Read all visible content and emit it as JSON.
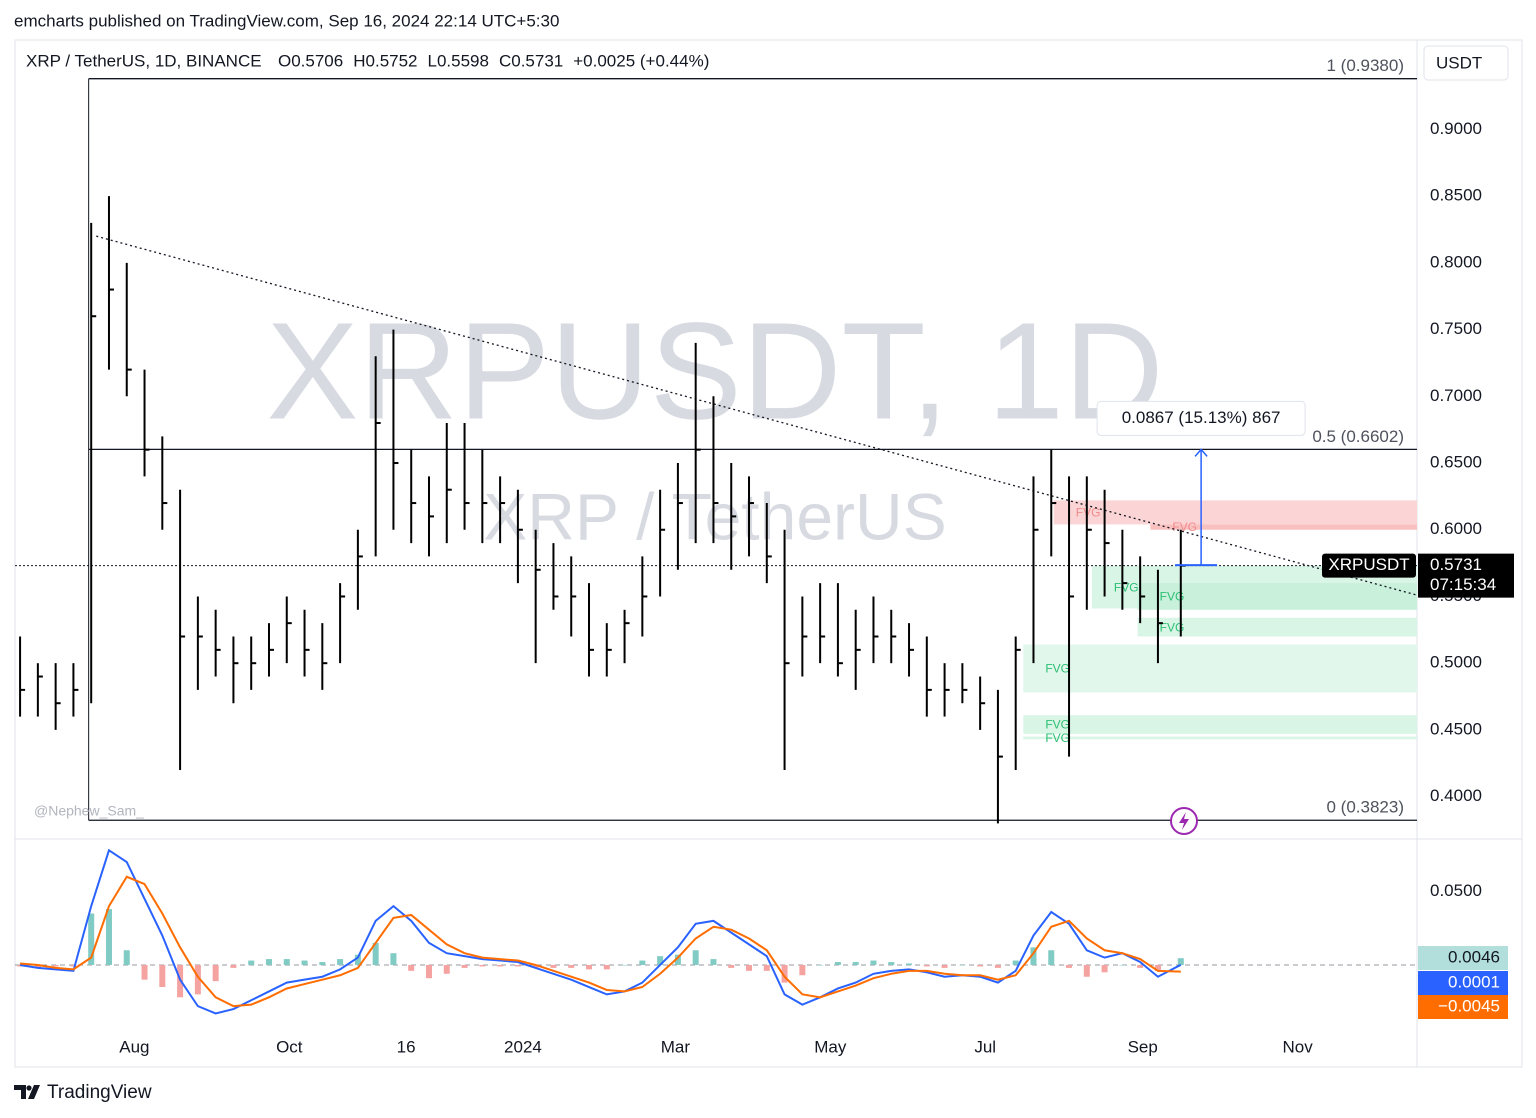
{
  "chart_data": {
    "type": "ohlc",
    "publisher": "emcharts published on TradingView.com, Sep 16, 2024 22:14 UTC+5:30",
    "title": "XRP / TetherUS, 1D, BINANCE",
    "ohlc_labels": [
      "O0.5706",
      "H0.5752",
      "L0.5598",
      "C0.5731",
      "+0.0025 (+0.44%)"
    ],
    "currency": "USDT",
    "watermark": "XRPUSDT, 1D",
    "watermark_sub": "XRP / TetherUS",
    "author": "@Nephew_Sam_",
    "brand": "TradingView",
    "color": "#000000",
    "grid": false,
    "xlim": [
      -47,
      505
    ],
    "xticks": [
      {
        "value": 0,
        "label": "Aug"
      },
      {
        "value": 61,
        "label": "Oct"
      },
      {
        "value": 107,
        "label": "16"
      },
      {
        "value": 153,
        "label": "2024"
      },
      {
        "value": 213,
        "label": "Mar"
      },
      {
        "value": 274,
        "label": "May"
      },
      {
        "value": 335,
        "label": "Jul"
      },
      {
        "value": 397,
        "label": "Sep"
      },
      {
        "value": 458,
        "label": "Nov"
      }
    ],
    "ylim": [
      0.369,
      0.967
    ],
    "yticks": [
      {
        "value": 0.4,
        "label": "0.4000"
      },
      {
        "value": 0.45,
        "label": "0.4500"
      },
      {
        "value": 0.5,
        "label": "0.5000"
      },
      {
        "value": 0.55,
        "label": "0.5500"
      },
      {
        "value": 0.6,
        "label": "0.6000"
      },
      {
        "value": 0.65,
        "label": "0.6500"
      },
      {
        "value": 0.7,
        "label": "0.7000"
      },
      {
        "value": 0.75,
        "label": "0.7500"
      },
      {
        "value": 0.8,
        "label": "0.8000"
      },
      {
        "value": 0.85,
        "label": "0.8500"
      },
      {
        "value": 0.9,
        "label": "0.9000"
      }
    ],
    "x": [
      -45,
      -38,
      -31,
      -24,
      -17,
      -10,
      -3,
      4,
      11,
      18,
      25,
      32,
      39,
      46,
      53,
      60,
      67,
      74,
      81,
      88,
      95,
      102,
      109,
      116,
      123,
      130,
      137,
      144,
      151,
      158,
      165,
      172,
      179,
      186,
      193,
      200,
      207,
      214,
      221,
      228,
      235,
      242,
      249,
      256,
      263,
      270,
      277,
      284,
      291,
      298,
      305,
      312,
      319,
      326,
      333,
      340,
      347,
      354,
      361,
      368,
      375,
      382,
      389,
      396,
      403,
      412
    ],
    "high": [
      0.52,
      0.5,
      0.5,
      0.5,
      0.83,
      0.85,
      0.8,
      0.72,
      0.67,
      0.63,
      0.55,
      0.54,
      0.52,
      0.52,
      0.53,
      0.55,
      0.54,
      0.53,
      0.56,
      0.6,
      0.73,
      0.75,
      0.66,
      0.64,
      0.68,
      0.68,
      0.66,
      0.64,
      0.63,
      0.6,
      0.59,
      0.58,
      0.56,
      0.53,
      0.54,
      0.58,
      0.63,
      0.65,
      0.74,
      0.7,
      0.65,
      0.64,
      0.62,
      0.6,
      0.55,
      0.56,
      0.56,
      0.54,
      0.55,
      0.54,
      0.53,
      0.52,
      0.5,
      0.5,
      0.49,
      0.48,
      0.52,
      0.64,
      0.66,
      0.64,
      0.64,
      0.63,
      0.6,
      0.58,
      0.57,
      0.6
    ],
    "low": [
      0.46,
      0.46,
      0.45,
      0.46,
      0.47,
      0.72,
      0.7,
      0.64,
      0.6,
      0.42,
      0.48,
      0.49,
      0.47,
      0.48,
      0.49,
      0.5,
      0.49,
      0.48,
      0.5,
      0.54,
      0.58,
      0.6,
      0.59,
      0.58,
      0.59,
      0.6,
      0.59,
      0.59,
      0.56,
      0.5,
      0.54,
      0.52,
      0.49,
      0.49,
      0.5,
      0.52,
      0.55,
      0.57,
      0.59,
      0.59,
      0.57,
      0.58,
      0.56,
      0.42,
      0.49,
      0.5,
      0.49,
      0.48,
      0.5,
      0.5,
      0.49,
      0.46,
      0.46,
      0.47,
      0.45,
      0.38,
      0.42,
      0.5,
      0.58,
      0.43,
      0.54,
      0.55,
      0.54,
      0.53,
      0.5,
      0.52
    ],
    "close": [
      0.48,
      0.49,
      0.47,
      0.48,
      0.76,
      0.78,
      0.72,
      0.66,
      0.62,
      0.52,
      0.52,
      0.51,
      0.5,
      0.5,
      0.51,
      0.53,
      0.51,
      0.5,
      0.55,
      0.58,
      0.68,
      0.65,
      0.62,
      0.61,
      0.63,
      0.62,
      0.62,
      0.62,
      0.6,
      0.57,
      0.55,
      0.55,
      0.51,
      0.51,
      0.53,
      0.55,
      0.6,
      0.62,
      0.66,
      0.62,
      0.61,
      0.62,
      0.58,
      0.5,
      0.52,
      0.52,
      0.5,
      0.51,
      0.52,
      0.52,
      0.51,
      0.48,
      0.48,
      0.48,
      0.47,
      0.43,
      0.51,
      0.6,
      0.62,
      0.55,
      0.6,
      0.59,
      0.56,
      0.55,
      0.53,
      0.5731
    ],
    "fib_start": -18,
    "fib_levels": [
      {
        "value": 0.938,
        "label": "1 (0.9380)"
      },
      {
        "value": 0.6602,
        "label": "0.5 (0.6602)"
      },
      {
        "value": 0.3823,
        "label": "0 (0.3823)"
      }
    ],
    "trendline": {
      "x": [
        -15,
        505
      ],
      "y": [
        0.82,
        0.551
      ]
    },
    "last_price": {
      "symbol": "XRPUSDT",
      "value": 0.5731,
      "countdown": "07:15:34"
    },
    "measure": {
      "label": "0.0867 (15.13%) 867",
      "x": 420,
      "from": 0.5735,
      "to": 0.6602,
      "color": "#2962ff"
    },
    "fvg": [
      {
        "label": "FVG",
        "start": 362,
        "top": 0.622,
        "bottom": 0.604,
        "color": "#fbd5d5",
        "label_color": "#f28b8b"
      },
      {
        "label": "FVG",
        "start": 400,
        "top": 0.604,
        "bottom": 0.6,
        "color": "#f9c0c0",
        "label_color": "#f28b8b"
      },
      {
        "label": "FVG",
        "start": 377,
        "top": 0.573,
        "bottom": 0.541,
        "color": "#d9f5e6",
        "label_color": "#2bbf73"
      },
      {
        "label": "FVG",
        "start": 395,
        "top": 0.56,
        "bottom": 0.54,
        "color": "#c8f0db",
        "label_color": "#2bbf73"
      },
      {
        "label": "FVG",
        "start": 395,
        "top": 0.534,
        "bottom": 0.52,
        "color": "#d9f5e6",
        "label_color": "#2bbf73"
      },
      {
        "label": "FVG",
        "start": 350,
        "top": 0.514,
        "bottom": 0.478,
        "color": "#e1f7eb",
        "label_color": "#2bbf73"
      },
      {
        "label": "FVG",
        "start": 350,
        "top": 0.461,
        "bottom": 0.447,
        "color": "#d9f5e6",
        "label_color": "#2bbf73"
      },
      {
        "label": "FVG",
        "start": 350,
        "top": 0.445,
        "bottom": 0.443,
        "color": "#d9f5e6",
        "label_color": "#2bbf73"
      }
    ],
    "macd": {
      "ylim": [
        -0.049,
        0.085
      ],
      "yticks": [
        {
          "value": 0.05,
          "label": "0.0500"
        }
      ],
      "histogram": {
        "up_color": "#80cbc4",
        "down_color": "#f4a3a1",
        "label_bg": "#b2dfdb",
        "last_label": "0.0046",
        "values": [
          -0.001,
          -0.002,
          -0.001,
          -0.001,
          0.035,
          0.038,
          0.01,
          -0.01,
          -0.015,
          -0.022,
          -0.02,
          -0.011,
          -0.002,
          0.003,
          0.004,
          0.004,
          0.003,
          0.002,
          0.004,
          0.007,
          0.015,
          0.008,
          -0.004,
          -0.009,
          -0.006,
          -0.002,
          -0.001,
          -0.001,
          -0.001,
          -0.002,
          -0.002,
          -0.002,
          -0.003,
          -0.003,
          0.0,
          0.003,
          0.006,
          0.007,
          0.01,
          0.004,
          -0.002,
          -0.004,
          -0.004,
          -0.012,
          -0.007,
          0.0,
          0.002,
          0.002,
          0.003,
          0.002,
          0.001,
          -0.001,
          -0.002,
          0.0,
          -0.001,
          -0.002,
          0.003,
          0.012,
          0.01,
          -0.002,
          -0.008,
          -0.005,
          0.0,
          -0.002,
          -0.004,
          0.0046
        ]
      },
      "series": [
        {
          "color": "#2962ff",
          "last_label": "0.0001",
          "values": [
            0.0,
            -0.002,
            -0.003,
            -0.004,
            0.04,
            0.078,
            0.07,
            0.045,
            0.02,
            -0.01,
            -0.028,
            -0.033,
            -0.03,
            -0.024,
            -0.018,
            -0.012,
            -0.01,
            -0.008,
            -0.003,
            0.005,
            0.03,
            0.04,
            0.03,
            0.015,
            0.008,
            0.006,
            0.004,
            0.003,
            0.002,
            -0.002,
            -0.006,
            -0.01,
            -0.015,
            -0.02,
            -0.018,
            -0.012,
            0.0,
            0.012,
            0.028,
            0.03,
            0.022,
            0.014,
            0.006,
            -0.02,
            -0.027,
            -0.022,
            -0.016,
            -0.012,
            -0.006,
            -0.004,
            -0.003,
            -0.005,
            -0.008,
            -0.007,
            -0.008,
            -0.012,
            -0.004,
            0.02,
            0.036,
            0.028,
            0.01,
            0.005,
            0.008,
            0.002,
            -0.008,
            0.0001
          ]
        },
        {
          "color": "#ff6d00",
          "last_label": "−0.0045",
          "values": [
            0.001,
            0.0,
            -0.002,
            -0.003,
            0.005,
            0.04,
            0.06,
            0.055,
            0.035,
            0.012,
            -0.008,
            -0.022,
            -0.028,
            -0.027,
            -0.022,
            -0.016,
            -0.013,
            -0.01,
            -0.007,
            -0.002,
            0.015,
            0.032,
            0.034,
            0.024,
            0.014,
            0.008,
            0.005,
            0.004,
            0.003,
            0.0,
            -0.004,
            -0.008,
            -0.012,
            -0.017,
            -0.018,
            -0.015,
            -0.006,
            0.005,
            0.018,
            0.026,
            0.024,
            0.018,
            0.01,
            -0.008,
            -0.02,
            -0.022,
            -0.018,
            -0.014,
            -0.009,
            -0.006,
            -0.004,
            -0.004,
            -0.006,
            -0.007,
            -0.007,
            -0.01,
            -0.007,
            0.008,
            0.026,
            0.03,
            0.018,
            0.01,
            0.008,
            0.004,
            -0.004,
            -0.0045
          ]
        }
      ]
    }
  }
}
